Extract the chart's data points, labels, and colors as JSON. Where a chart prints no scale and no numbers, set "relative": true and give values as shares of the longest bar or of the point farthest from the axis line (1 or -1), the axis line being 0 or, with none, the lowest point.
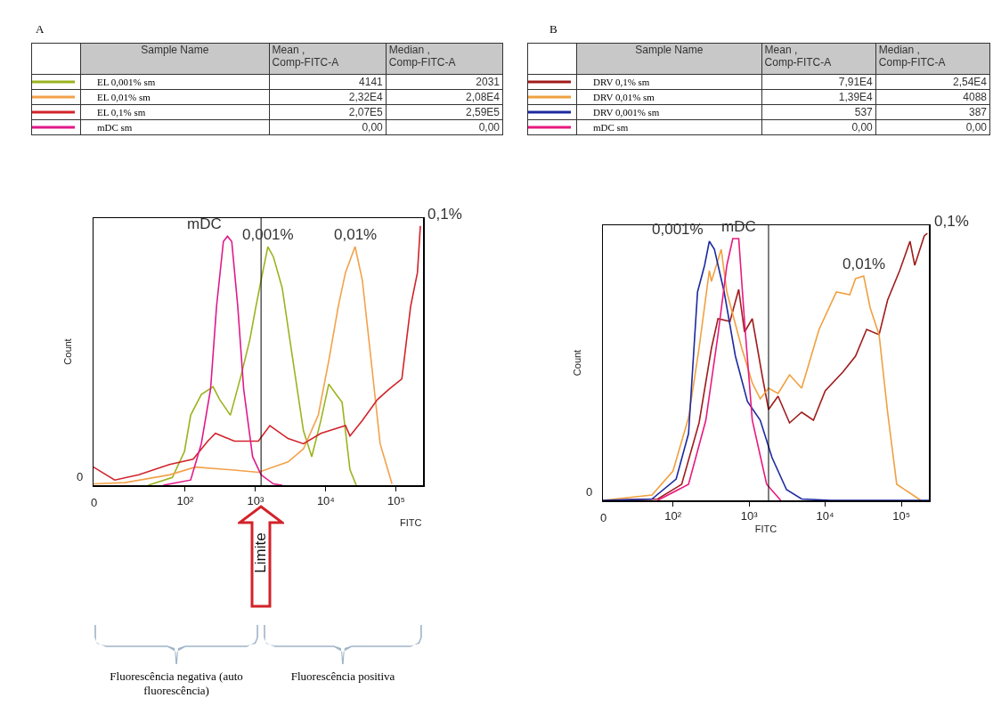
{
  "chart_data": [
    {
      "type": "line",
      "title": "A",
      "xlabel": "FITC",
      "ylabel": "Count",
      "relative": true,
      "log": "x",
      "legend": "top",
      "xlim": [
        0,
        240000
      ],
      "xticks": [
        0,
        {
          "value": 100,
          "label": "10²"
        },
        {
          "value": 1000,
          "label": "10³"
        },
        {
          "value": 10000,
          "label": "10⁴"
        },
        {
          "value": 100000,
          "label": "10⁵"
        }
      ],
      "series": [
        {
          "name": "EL 0,001% sm",
          "color": "#9bb31f",
          "x": [
            30,
            66,
            98,
            120,
            170,
            250,
            310,
            440,
            620,
            830,
            1000,
            1200,
            1500,
            1800,
            2400,
            3200,
            4800,
            6300,
            8500,
            11000,
            14000,
            17000,
            22000,
            27000
          ],
          "values": [
            0,
            0.03,
            0.13,
            0.27,
            0.35,
            0.38,
            0.33,
            0.27,
            0.42,
            0.56,
            0.68,
            0.79,
            0.92,
            0.88,
            0.76,
            0.53,
            0.21,
            0.11,
            0.25,
            0.39,
            0.35,
            0.32,
            0.06,
            0
          ]
        },
        {
          "name": "EL 0,01% sm",
          "color": "#f4a14a",
          "x": [
            5,
            14,
            60,
            140,
            420,
            1100,
            2900,
            4800,
            7800,
            11000,
            15000,
            19000,
            26000,
            33000,
            44000,
            59000,
            87000
          ],
          "values": [
            0.005,
            0.01,
            0.04,
            0.07,
            0.06,
            0.05,
            0.09,
            0.14,
            0.27,
            0.48,
            0.69,
            0.82,
            0.92,
            0.79,
            0.48,
            0.16,
            0.005
          ]
        },
        {
          "name": "EL 0,1% sm",
          "color": "#d2232a",
          "x": [
            5,
            10,
            22,
            60,
            130,
            210,
            270,
            500,
            1100,
            1600,
            2900,
            4800,
            8500,
            19000,
            22000,
            33000,
            54000,
            79000,
            120000,
            160000,
            200000,
            220000
          ],
          "values": [
            0.07,
            0.02,
            0.04,
            0.08,
            0.1,
            0.17,
            0.2,
            0.17,
            0.17,
            0.23,
            0.18,
            0.16,
            0.2,
            0.23,
            0.19,
            0.25,
            0.33,
            0.37,
            0.41,
            0.69,
            0.82,
            1
          ]
        },
        {
          "name": "mDC sm",
          "color": "#e0198a",
          "x": [
            49,
            120,
            170,
            230,
            280,
            350,
            400,
            460,
            560,
            680,
            910,
            1200,
            1800,
            2400
          ],
          "values": [
            0,
            0.02,
            0.16,
            0.37,
            0.69,
            0.94,
            0.96,
            0.94,
            0.69,
            0.37,
            0.11,
            0.04,
            0.005,
            0
          ]
        }
      ],
      "ref_lines": [
        {
          "axis": "x",
          "value": 1200
        }
      ],
      "annotations": [
        "Sample Name",
        "Mean , Comp-FITC-A",
        "Median , Comp-FITC-A",
        "4141",
        "2031",
        "2,32E4",
        "2,08E4",
        "2,07E5",
        "2,59E5",
        "0,00",
        "0,00",
        "0",
        {
          "text": "mDC",
          "x": 400,
          "y": 0.96
        },
        {
          "text": "0,001%",
          "x": 1500,
          "y": 0.92
        },
        {
          "text": "0,01%",
          "x": 26000,
          "y": 0.92
        },
        {
          "text": "0,1%",
          "x": 220000,
          "y": 1
        },
        "Limite",
        "Fluorescência negativa (auto fluorescência)",
        "Fluorescência positiva"
      ]
    },
    {
      "type": "line",
      "title": "B",
      "xlabel": "FITC",
      "ylabel": "Count",
      "relative": true,
      "log": "x",
      "legend": "top",
      "xlim": [
        0,
        230000
      ],
      "xticks": [
        0,
        {
          "value": 100,
          "label": "10²"
        },
        {
          "value": 1000,
          "label": "10³"
        },
        {
          "value": 10000,
          "label": "10⁴"
        },
        {
          "value": 100000,
          "label": "10⁵"
        }
      ],
      "series": [
        {
          "name": "DRV 0,1% sm",
          "color": "#a01c1c",
          "x": [
            12,
            63,
            130,
            220,
            320,
            390,
            560,
            730,
            870,
            1100,
            1500,
            1800,
            2400,
            3400,
            4900,
            7000,
            10000,
            17000,
            25000,
            35000,
            51000,
            66000,
            95000,
            130000,
            150000,
            200000,
            220000
          ],
          "values": [
            0,
            0.005,
            0.06,
            0.29,
            0.57,
            0.68,
            0.67,
            0.79,
            0.63,
            0.68,
            0.46,
            0.34,
            0.39,
            0.29,
            0.33,
            0.3,
            0.41,
            0.48,
            0.54,
            0.64,
            0.62,
            0.75,
            0.86,
            0.97,
            0.88,
            0.99,
            1
          ]
        },
        {
          "name": "DRV 0,01% sm",
          "color": "#f0a040",
          "x": [
            12,
            53,
            100,
            160,
            220,
            300,
            320,
            430,
            510,
            800,
            1100,
            1400,
            1800,
            2400,
            3400,
            4900,
            8300,
            14000,
            21000,
            25000,
            32000,
            39000,
            51000,
            66000,
            87000,
            180000
          ],
          "values": [
            0,
            0.02,
            0.11,
            0.31,
            0.57,
            0.86,
            0.82,
            0.94,
            0.78,
            0.57,
            0.44,
            0.38,
            0.42,
            0.4,
            0.47,
            0.42,
            0.64,
            0.78,
            0.77,
            0.83,
            0.84,
            0.72,
            0.62,
            0.33,
            0.06,
            0
          ]
        },
        {
          "name": "DRV 0,001% sm",
          "color": "#1c2aa0",
          "x": [
            12,
            53,
            110,
            160,
            210,
            260,
            300,
            350,
            470,
            660,
            950,
            1400,
            2000,
            3100,
            4900,
            12000,
            230000
          ],
          "values": [
            0,
            0.005,
            0.08,
            0.25,
            0.78,
            0.88,
            0.97,
            0.94,
            0.78,
            0.54,
            0.37,
            0.3,
            0.16,
            0.04,
            0.005,
            0,
            0
          ]
        },
        {
          "name": "mDC sm",
          "color": "#e8197f",
          "x": [
            63,
            160,
            270,
            390,
            510,
            610,
            730,
            870,
            1100,
            1700,
            2600
          ],
          "values": [
            0,
            0.06,
            0.3,
            0.62,
            0.88,
            0.98,
            0.98,
            0.67,
            0.3,
            0.06,
            0
          ]
        }
      ],
      "ref_lines": [
        {
          "axis": "x",
          "value": 1800
        }
      ],
      "annotations": [
        "Sample Name",
        "Mean , Comp-FITC-A",
        "Median , Comp-FITC-A",
        "7,91E4",
        "2,54E4",
        "1,39E4",
        "4088",
        "537",
        "387",
        "0,00",
        "0,00",
        "0",
        {
          "text": "0,001%",
          "x": 300,
          "y": 0.97
        },
        {
          "text": "mDC",
          "x": 730,
          "y": 0.98
        },
        {
          "text": "0,01%",
          "x": 32000,
          "y": 0.84
        },
        {
          "text": "0,1%",
          "x": 220000,
          "y": 1
        }
      ]
    }
  ]
}
